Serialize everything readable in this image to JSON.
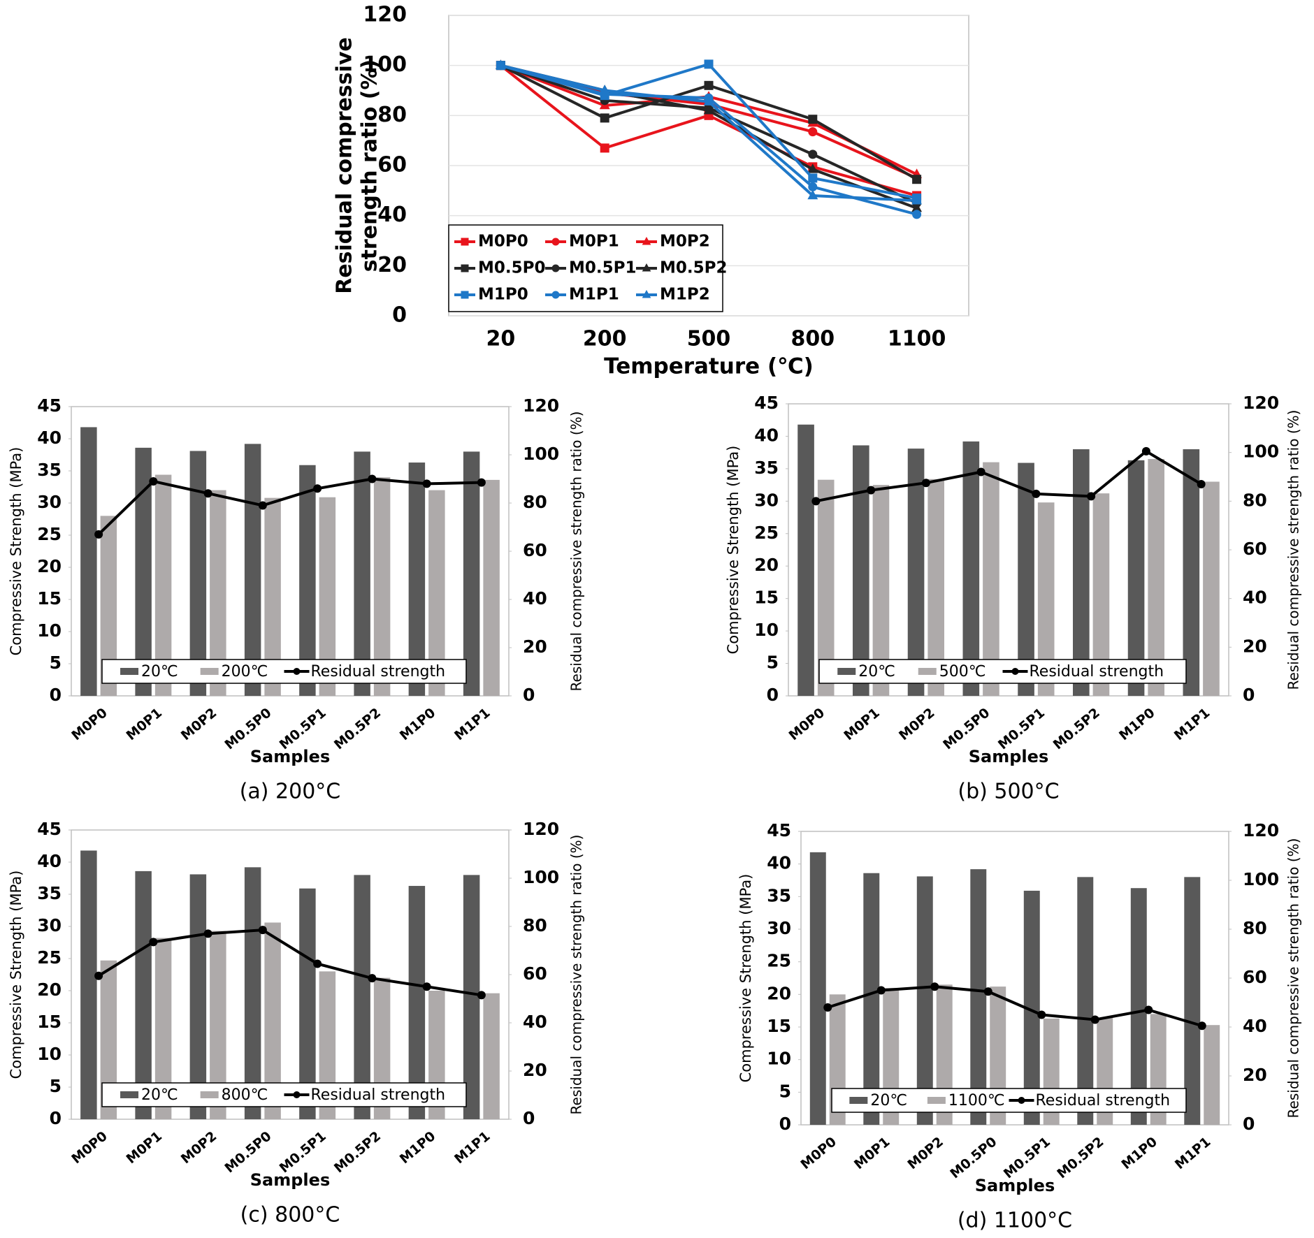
{
  "chart_data": [
    {
      "type": "line",
      "xlabel": "Temperature (℃)",
      "ylabel": [
        "Residual compressive",
        "strength ratio (%)"
      ],
      "categories": [
        "20",
        "200",
        "500",
        "800",
        "1100"
      ],
      "ylim": [
        0,
        120
      ],
      "yticks": [
        0,
        20,
        40,
        60,
        80,
        100,
        120
      ],
      "grid": true,
      "legend": "lower left",
      "series": [
        {
          "name": "M0P0",
          "color": "#e8141c",
          "marker": "square",
          "values": [
            100,
            67,
            80,
            59.5,
            48
          ]
        },
        {
          "name": "M0P1",
          "color": "#e8141c",
          "marker": "circle",
          "values": [
            100,
            89,
            84.5,
            73.5,
            55
          ]
        },
        {
          "name": "M0P2",
          "color": "#e8141c",
          "marker": "triangle",
          "values": [
            100,
            84,
            87.5,
            77,
            56.5
          ]
        },
        {
          "name": "M0.5P0",
          "color": "#262626",
          "marker": "square",
          "values": [
            100,
            79,
            92,
            78.5,
            54.5
          ]
        },
        {
          "name": "M0.5P1",
          "color": "#262626",
          "marker": "circle",
          "values": [
            100,
            86,
            83,
            64.5,
            45
          ]
        },
        {
          "name": "M0.5P2",
          "color": "#262626",
          "marker": "triangle",
          "values": [
            100,
            90,
            82,
            58.5,
            43
          ]
        },
        {
          "name": "M1P0",
          "color": "#1f78c8",
          "marker": "square",
          "values": [
            100,
            88,
            100.5,
            55,
            47
          ]
        },
        {
          "name": "M1P1",
          "color": "#1f78c8",
          "marker": "circle",
          "values": [
            100,
            88.5,
            87,
            51.5,
            40.5
          ]
        },
        {
          "name": "M1P2",
          "color": "#1f78c8",
          "marker": "triangle",
          "values": [
            100,
            90,
            85.5,
            48,
            46
          ]
        }
      ]
    },
    {
      "type": "bar",
      "caption": "(a)  200°C",
      "xlabel": "Samples",
      "ylabel": "Compressive Strength (MPa)",
      "y2label": "Residual compressive strength ratio (%)",
      "categories": [
        "M0P0",
        "M0P1",
        "M0P2",
        "M0.5P0",
        "M0.5P1",
        "M0.5P2",
        "M1P0",
        "M1P1"
      ],
      "ylim": [
        0,
        45
      ],
      "yticks": [
        0,
        5,
        10,
        15,
        20,
        25,
        30,
        35,
        40,
        45
      ],
      "y2lim": [
        0,
        120
      ],
      "y2ticks": [
        0,
        20,
        40,
        60,
        80,
        100,
        120
      ],
      "legend": "lower center",
      "series": [
        {
          "name": "20℃",
          "color": "#595959",
          "values": [
            41.8,
            38.6,
            38.1,
            39.2,
            35.9,
            38.0,
            36.3,
            38.0
          ]
        },
        {
          "name": "200℃",
          "color": "#aeaaaa",
          "values": [
            28.0,
            34.4,
            32.0,
            30.8,
            30.9,
            34.0,
            32.0,
            33.6
          ]
        },
        {
          "name": "Residual strength",
          "color": "#000000",
          "axis": "y2",
          "values": [
            67,
            89,
            84,
            79,
            86,
            90,
            88,
            88.5
          ]
        }
      ]
    },
    {
      "type": "bar",
      "caption": "(b)  500°C",
      "xlabel": "Samples",
      "ylabel": "Compressive Strength (MPa)",
      "y2label": "Residual compressive strength ratio (%)",
      "categories": [
        "M0P0",
        "M0P1",
        "M0P2",
        "M0.5P0",
        "M0.5P1",
        "M0.5P2",
        "M1P0",
        "M1P1"
      ],
      "ylim": [
        0,
        45
      ],
      "yticks": [
        0,
        5,
        10,
        15,
        20,
        25,
        30,
        35,
        40,
        45
      ],
      "y2lim": [
        0,
        120
      ],
      "y2ticks": [
        0,
        20,
        40,
        60,
        80,
        100,
        120
      ],
      "legend": "lower center",
      "series": [
        {
          "name": "20℃",
          "color": "#595959",
          "values": [
            41.8,
            38.6,
            38.1,
            39.2,
            35.9,
            38.0,
            36.3,
            38.0
          ]
        },
        {
          "name": "500℃",
          "color": "#aeaaaa",
          "values": [
            33.3,
            32.5,
            33.4,
            36.0,
            29.8,
            31.2,
            36.5,
            33.0
          ]
        },
        {
          "name": "Residual strength",
          "color": "#000000",
          "axis": "y2",
          "values": [
            80,
            84.5,
            87.5,
            92,
            83,
            82,
            100.5,
            87
          ]
        }
      ]
    },
    {
      "type": "bar",
      "caption": "(c)  800°C",
      "xlabel": "Samples",
      "ylabel": "Compressive Strength (MPa)",
      "y2label": "Residual compressive strength ratio (%)",
      "categories": [
        "M0P0",
        "M0P1",
        "M0P2",
        "M0.5P0",
        "M0.5P1",
        "M0.5P2",
        "M1P0",
        "M1P1"
      ],
      "ylim": [
        0,
        45
      ],
      "yticks": [
        0,
        5,
        10,
        15,
        20,
        25,
        30,
        35,
        40,
        45
      ],
      "y2lim": [
        0,
        120
      ],
      "y2ticks": [
        0,
        20,
        40,
        60,
        80,
        100,
        120
      ],
      "legend": "lower center",
      "series": [
        {
          "name": "20℃",
          "color": "#595959",
          "values": [
            41.8,
            38.6,
            38.1,
            39.2,
            35.9,
            38.0,
            36.3,
            38.0
          ]
        },
        {
          "name": "800℃",
          "color": "#aeaaaa",
          "values": [
            24.7,
            28.2,
            29.3,
            30.6,
            23.0,
            22.0,
            20.0,
            19.6
          ]
        },
        {
          "name": "Residual strength",
          "color": "#000000",
          "axis": "y2",
          "values": [
            59.5,
            73.5,
            77,
            78.5,
            64.5,
            58.5,
            55,
            51.5
          ]
        }
      ]
    },
    {
      "type": "bar",
      "caption": "(d)  1100°C",
      "xlabel": "Samples",
      "ylabel": "Compressive Strength (MPa)",
      "y2label": "Residual compressive strength ratio (%)",
      "categories": [
        "M0P0",
        "M0P1",
        "M0P2",
        "M0.5P0",
        "M0.5P1",
        "M0.5P2",
        "M1P0",
        "M1P1"
      ],
      "ylim": [
        0,
        45
      ],
      "yticks": [
        0,
        5,
        10,
        15,
        20,
        25,
        30,
        35,
        40,
        45
      ],
      "y2lim": [
        0,
        120
      ],
      "y2ticks": [
        0,
        20,
        40,
        60,
        80,
        100,
        120
      ],
      "legend": "lower center",
      "series": [
        {
          "name": "20℃",
          "color": "#595959",
          "values": [
            41.8,
            38.6,
            38.1,
            39.2,
            35.9,
            38.0,
            36.3,
            38.0
          ]
        },
        {
          "name": "1100℃",
          "color": "#aeaaaa",
          "values": [
            20.0,
            21.0,
            21.5,
            21.2,
            16.3,
            16.4,
            17.0,
            15.3
          ]
        },
        {
          "name": "Residual strength",
          "color": "#000000",
          "axis": "y2",
          "values": [
            48,
            55,
            56.5,
            54.5,
            45,
            43,
            47,
            40.5
          ]
        }
      ]
    }
  ]
}
